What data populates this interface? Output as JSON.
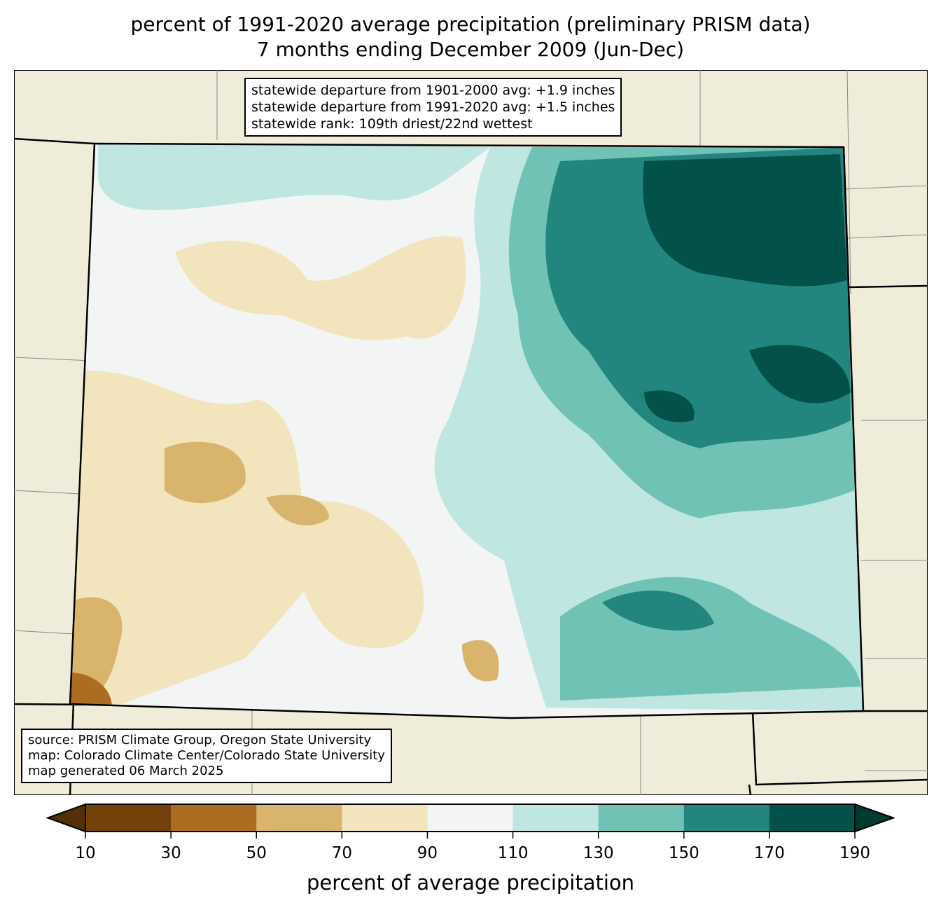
{
  "title": {
    "line1": "percent of 1991-2020 average precipitation (preliminary PRISM data)",
    "line2": "7 months ending December 2009 (Jun-Dec)"
  },
  "stats": {
    "line1": "statewide departure from 1901-2000 avg: +1.9 inches",
    "line2": "statewide departure from 1991-2020 avg: +1.5 inches",
    "line3": "statewide rank: 109th driest/22nd wettest"
  },
  "credits": {
    "line1": "source: PRISM Climate Group, Oregon State University",
    "line2": "map: Colorado Climate Center/Colorado State University",
    "line3": "map generated 06 March 2025"
  },
  "colorbar": {
    "label": "percent of average precipitation",
    "ticks": [
      "10",
      "30",
      "50",
      "70",
      "90",
      "110",
      "130",
      "150",
      "170",
      "190"
    ],
    "colors": [
      "#73410a",
      "#ac6d23",
      "#d9b46d",
      "#f2e4bd",
      "#f3f4f4",
      "#bfe6e1",
      "#70c2b5",
      "#22867e",
      "#03524a"
    ],
    "under": "#543005",
    "over": "#003c30"
  },
  "colors": {
    "land": "#efedda"
  }
}
